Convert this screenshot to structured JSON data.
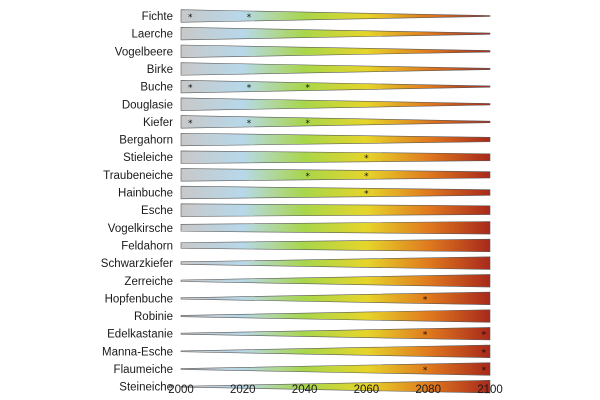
{
  "chart_data": {
    "type": "area",
    "title": "",
    "xlabel": "",
    "ylabel": "",
    "xlim": [
      2000,
      2100
    ],
    "x_ticks": [
      "2000",
      "2020",
      "2040",
      "2060",
      "2080",
      "2100"
    ],
    "grid": false,
    "legend": "none",
    "color_scale": [
      "#c8c8c8",
      "#b7d8ea",
      "#a8d64a",
      "#e6d52a",
      "#e07a1e",
      "#a8281c"
    ],
    "color_scale_years": [
      2000,
      2020,
      2040,
      2060,
      2080,
      2100
    ],
    "series": [
      {
        "label": "Fichte",
        "start_width": 1.0,
        "end_width": 0.05,
        "stars": [
          2003,
          2022
        ]
      },
      {
        "label": "Laerche",
        "start_width": 1.0,
        "end_width": 0.1,
        "stars": []
      },
      {
        "label": "Vogelbeere",
        "start_width": 1.0,
        "end_width": 0.12,
        "stars": []
      },
      {
        "label": "Birke",
        "start_width": 1.0,
        "end_width": 0.1,
        "stars": []
      },
      {
        "label": "Buche",
        "start_width": 1.0,
        "end_width": 0.1,
        "stars": [
          2003,
          2022,
          2041
        ]
      },
      {
        "label": "Douglasie",
        "start_width": 1.0,
        "end_width": 0.12,
        "stars": []
      },
      {
        "label": "Kiefer",
        "start_width": 1.0,
        "end_width": 0.12,
        "stars": [
          2003,
          2022,
          2041
        ]
      },
      {
        "label": "Bergahorn",
        "start_width": 1.0,
        "end_width": 0.35,
        "stars": []
      },
      {
        "label": "Stieleiche",
        "start_width": 1.0,
        "end_width": 0.55,
        "stars": [
          2060
        ]
      },
      {
        "label": "Traubeneiche",
        "start_width": 1.0,
        "end_width": 0.5,
        "stars": [
          2041,
          2060
        ]
      },
      {
        "label": "Hainbuche",
        "start_width": 1.0,
        "end_width": 0.45,
        "stars": [
          2060
        ]
      },
      {
        "label": "Esche",
        "start_width": 1.0,
        "end_width": 0.7,
        "stars": []
      },
      {
        "label": "Vogelkirsche",
        "start_width": 0.55,
        "end_width": 1.0,
        "stars": []
      },
      {
        "label": "Feldahorn",
        "start_width": 0.45,
        "end_width": 1.0,
        "stars": []
      },
      {
        "label": "Schwarzkiefer",
        "start_width": 0.2,
        "end_width": 1.0,
        "stars": []
      },
      {
        "label": "Zerreiche",
        "start_width": 0.12,
        "end_width": 1.0,
        "stars": []
      },
      {
        "label": "Hopfenbuche",
        "start_width": 0.1,
        "end_width": 1.0,
        "stars": [
          2079
        ]
      },
      {
        "label": "Robinie",
        "start_width": 0.1,
        "end_width": 1.0,
        "stars": []
      },
      {
        "label": "Edelkastanie",
        "start_width": 0.08,
        "end_width": 1.0,
        "stars": [
          2079,
          2098
        ]
      },
      {
        "label": "Manna-Esche",
        "start_width": 0.05,
        "end_width": 1.0,
        "stars": [
          2098
        ]
      },
      {
        "label": "Flaumeiche",
        "start_width": 0.05,
        "end_width": 1.0,
        "stars": [
          2079,
          2098
        ]
      },
      {
        "label": "Steineiche",
        "start_width": 0.02,
        "end_width": 1.0,
        "stars": []
      }
    ]
  }
}
